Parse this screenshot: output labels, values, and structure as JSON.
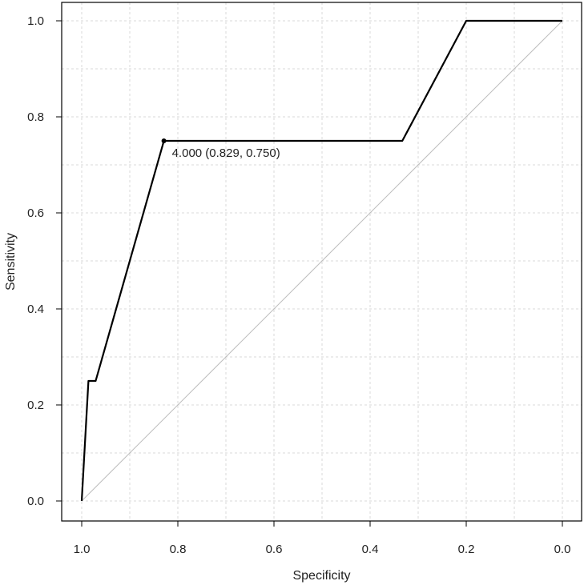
{
  "chart_data": {
    "type": "line",
    "title": "",
    "xlabel": "Specificity",
    "ylabel": "Sensitivity",
    "xlim": [
      1.0,
      0.0
    ],
    "ylim": [
      0.0,
      1.0
    ],
    "x_ticks": [
      1.0,
      0.8,
      0.6,
      0.4,
      0.2,
      0.0
    ],
    "x_tick_labels": [
      "1.0",
      "0.8",
      "0.6",
      "0.4",
      "0.2",
      "0.0"
    ],
    "y_ticks": [
      0.0,
      0.2,
      0.4,
      0.6,
      0.8,
      1.0
    ],
    "y_tick_labels": [
      "0.0",
      "0.2",
      "0.4",
      "0.6",
      "0.8",
      "1.0"
    ],
    "grid": true,
    "series": [
      {
        "x": [
          1.0,
          0.986,
          0.986,
          0.971,
          0.829,
          0.333,
          0.2,
          0.0
        ],
        "y": [
          0.0,
          0.25,
          0.25,
          0.25,
          0.75,
          0.75,
          1.0,
          1.0
        ]
      }
    ],
    "reference_line": {
      "x": [
        1.0,
        0.0
      ],
      "y": [
        0.0,
        1.0
      ]
    },
    "annotation": {
      "point": [
        0.829,
        0.75
      ],
      "text": "4.000 (0.829, 0.750)"
    },
    "colors": {
      "curve": "#000000",
      "reference": "#bdbdbd",
      "grid": "#d9d9d9",
      "frame": "#000000"
    }
  }
}
